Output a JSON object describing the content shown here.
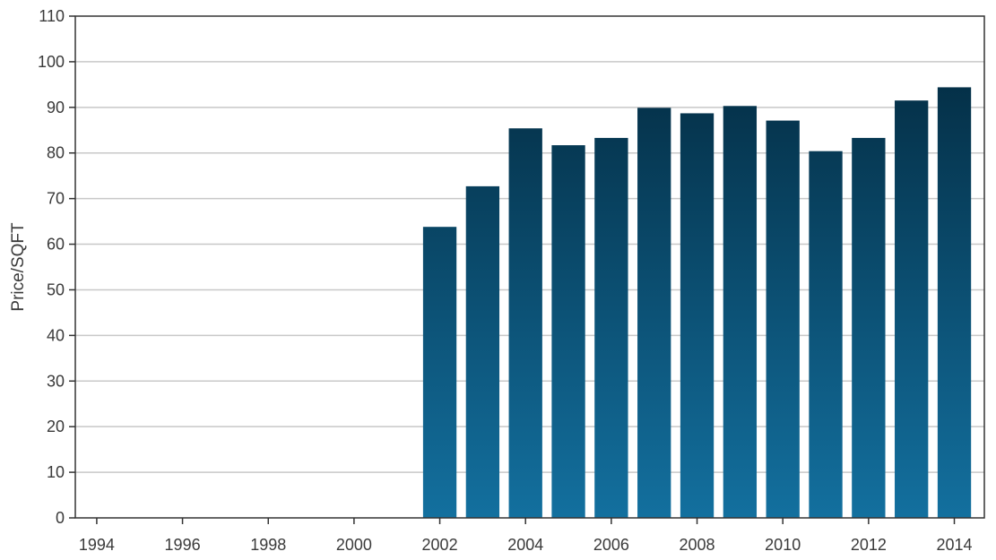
{
  "chart_data": {
    "type": "bar",
    "title": "",
    "xlabel": "",
    "ylabel": "Price/SQFT",
    "ylim": [
      0,
      110
    ],
    "xlim": [
      1993.5,
      2014.7
    ],
    "yticks": [
      0,
      10,
      20,
      30,
      40,
      50,
      60,
      70,
      80,
      90,
      100,
      110
    ],
    "xticks": [
      1994,
      1996,
      1998,
      2000,
      2002,
      2004,
      2006,
      2008,
      2010,
      2012,
      2014
    ],
    "grid": "horizontal",
    "colors": {
      "bar_top": "#02263a",
      "bar_bottom": "#13709f"
    },
    "categories": [
      2002,
      2003,
      2004,
      2005,
      2006,
      2007,
      2008,
      2009,
      2010,
      2011,
      2012,
      2013,
      2014
    ],
    "values": [
      63.8,
      72.7,
      85.4,
      81.7,
      83.3,
      89.9,
      88.7,
      90.3,
      87.1,
      80.4,
      83.3,
      91.5,
      94.4
    ]
  }
}
